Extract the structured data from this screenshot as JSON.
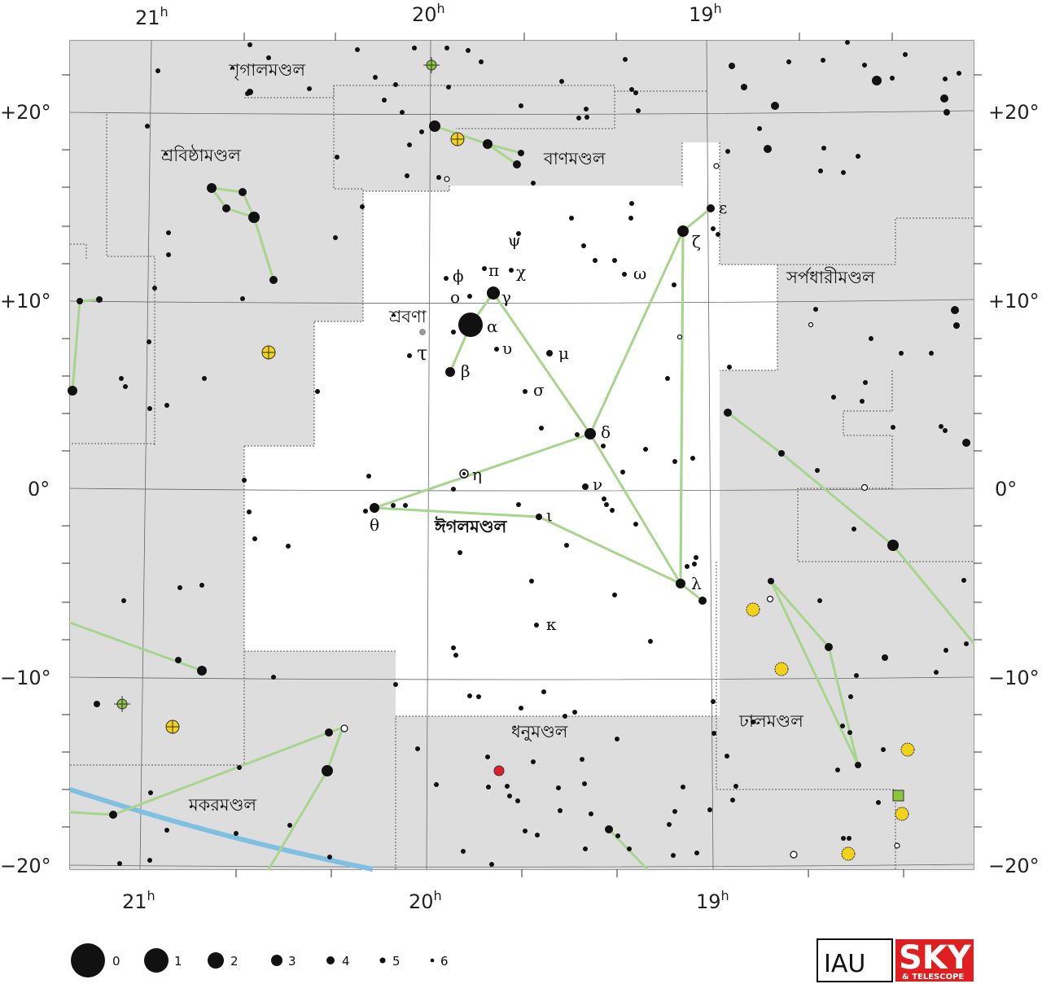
{
  "ra_labels": [
    {
      "h": "21",
      "u": "h"
    },
    {
      "h": "20",
      "u": "h"
    },
    {
      "h": "19",
      "u": "h"
    }
  ],
  "dec_labels": [
    "+20°",
    "+10°",
    "0°",
    "−10°",
    "−20°"
  ],
  "constellations": {
    "vulpecula": "শৃগালমণ্ডল",
    "delphinus": "শ্রবিষ্ঠামণ্ডল",
    "sagitta": "বাণমণ্ডল",
    "serpens": "সর্পধারীমণ্ডল",
    "aquila": "ঈগলমণ্ডল",
    "sagittarius": "ধনুমণ্ডল",
    "scutum": "ঢালমণ্ডল",
    "capricornus": "মকরমণ্ডল"
  },
  "star_names": {
    "altair": "শ্রবণা"
  },
  "greek_letters": {
    "alpha": "α",
    "beta": "β",
    "gamma": "γ",
    "delta": "δ",
    "epsilon": "ε",
    "zeta": "ζ",
    "eta": "η",
    "theta": "θ",
    "iota": "ι",
    "kappa": "κ",
    "lambda": "λ",
    "mu": "μ",
    "nu": "ν",
    "omicron": "ο",
    "pi": "π",
    "sigma": "σ",
    "tau": "τ",
    "upsilon": "υ",
    "phi": "ϕ",
    "chi": "χ",
    "psi": "ψ",
    "omega": "ω"
  },
  "magnitude_legend": [
    "0",
    "1",
    "2",
    "3",
    "4",
    "5",
    "6"
  ],
  "logos": {
    "iau": "IAU",
    "sky": "SKY",
    "telescope": "& TELESCOPE"
  },
  "colors": {
    "region_gray": "#dddddd",
    "constellation_line": "#a8d58d",
    "ecliptic": "#7fbfe0",
    "boundary": "#555555",
    "grid": "#777777",
    "galaxy_yellow": "#f2d21a",
    "cluster_green": "#8cc63f",
    "nova_red": "#e0202a",
    "sky_red": "#e02020"
  }
}
